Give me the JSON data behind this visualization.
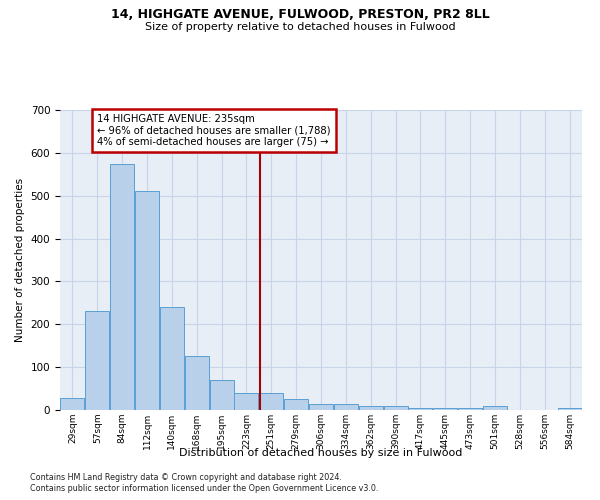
{
  "title1": "14, HIGHGATE AVENUE, FULWOOD, PRESTON, PR2 8LL",
  "title2": "Size of property relative to detached houses in Fulwood",
  "xlabel": "Distribution of detached houses by size in Fulwood",
  "ylabel": "Number of detached properties",
  "bin_labels": [
    "29sqm",
    "57sqm",
    "84sqm",
    "112sqm",
    "140sqm",
    "168sqm",
    "195sqm",
    "223sqm",
    "251sqm",
    "279sqm",
    "306sqm",
    "334sqm",
    "362sqm",
    "390sqm",
    "417sqm",
    "445sqm",
    "473sqm",
    "501sqm",
    "528sqm",
    "556sqm",
    "584sqm"
  ],
  "bar_values": [
    27,
    230,
    575,
    510,
    240,
    125,
    70,
    40,
    40,
    25,
    15,
    15,
    10,
    10,
    5,
    5,
    5,
    10,
    0,
    0,
    5
  ],
  "bar_color": "#b8d0ea",
  "bar_edge_color": "#5a9fd4",
  "vline_x": 7.55,
  "vline_color": "#aa0000",
  "annotation_line1": "14 HIGHGATE AVENUE: 235sqm",
  "annotation_line2": "← 96% of detached houses are smaller (1,788)",
  "annotation_line3": "4% of semi-detached houses are larger (75) →",
  "annotation_box_color": "#bb0000",
  "ylim": [
    0,
    700
  ],
  "yticks": [
    0,
    100,
    200,
    300,
    400,
    500,
    600,
    700
  ],
  "grid_color": "#c8d4e8",
  "bg_color": "#e8eef6",
  "footnote1": "Contains HM Land Registry data © Crown copyright and database right 2024.",
  "footnote2": "Contains public sector information licensed under the Open Government Licence v3.0."
}
